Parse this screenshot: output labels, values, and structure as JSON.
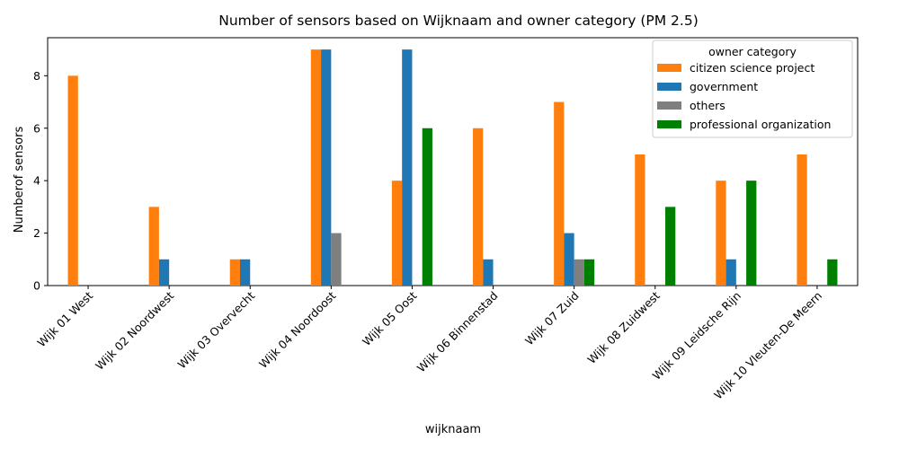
{
  "chart_data": {
    "type": "bar",
    "title": "Number of sensors based on Wijknaam and owner category (PM 2.5)",
    "xlabel": "wijknaam",
    "ylabel": "Numberof sensors",
    "ylim": [
      0,
      9.45
    ],
    "yticks": [
      0,
      2,
      4,
      6,
      8
    ],
    "categories": [
      "Wijk 01 West",
      "Wijk 02 Noordwest",
      "Wijk 03 Overvecht",
      "Wijk 04 Noordoost",
      "Wijk 05 Oost",
      "Wijk 06 Binnenstad",
      "Wijk 07 Zuid",
      "Wijk 08 Zuidwest",
      "Wijk 09 Leidsche Rijn",
      "Wijk 10 Vleuten-De Meern"
    ],
    "series": [
      {
        "name": "citizen science project",
        "color": "#ff7f0e",
        "values": [
          8,
          3,
          1,
          9,
          4,
          6,
          7,
          5,
          4,
          5
        ]
      },
      {
        "name": "government",
        "color": "#1f77b4",
        "values": [
          0,
          1,
          1,
          9,
          9,
          1,
          2,
          0,
          1,
          0
        ]
      },
      {
        "name": "others",
        "color": "#7f7f7f",
        "values": [
          0,
          0,
          0,
          2,
          0,
          0,
          1,
          0,
          0,
          0
        ]
      },
      {
        "name": "professional organization",
        "color": "#008000",
        "values": [
          0,
          0,
          0,
          0,
          6,
          0,
          1,
          3,
          4,
          1
        ]
      }
    ],
    "legend": {
      "title": "owner category",
      "position": "top-right"
    },
    "grid": false
  }
}
